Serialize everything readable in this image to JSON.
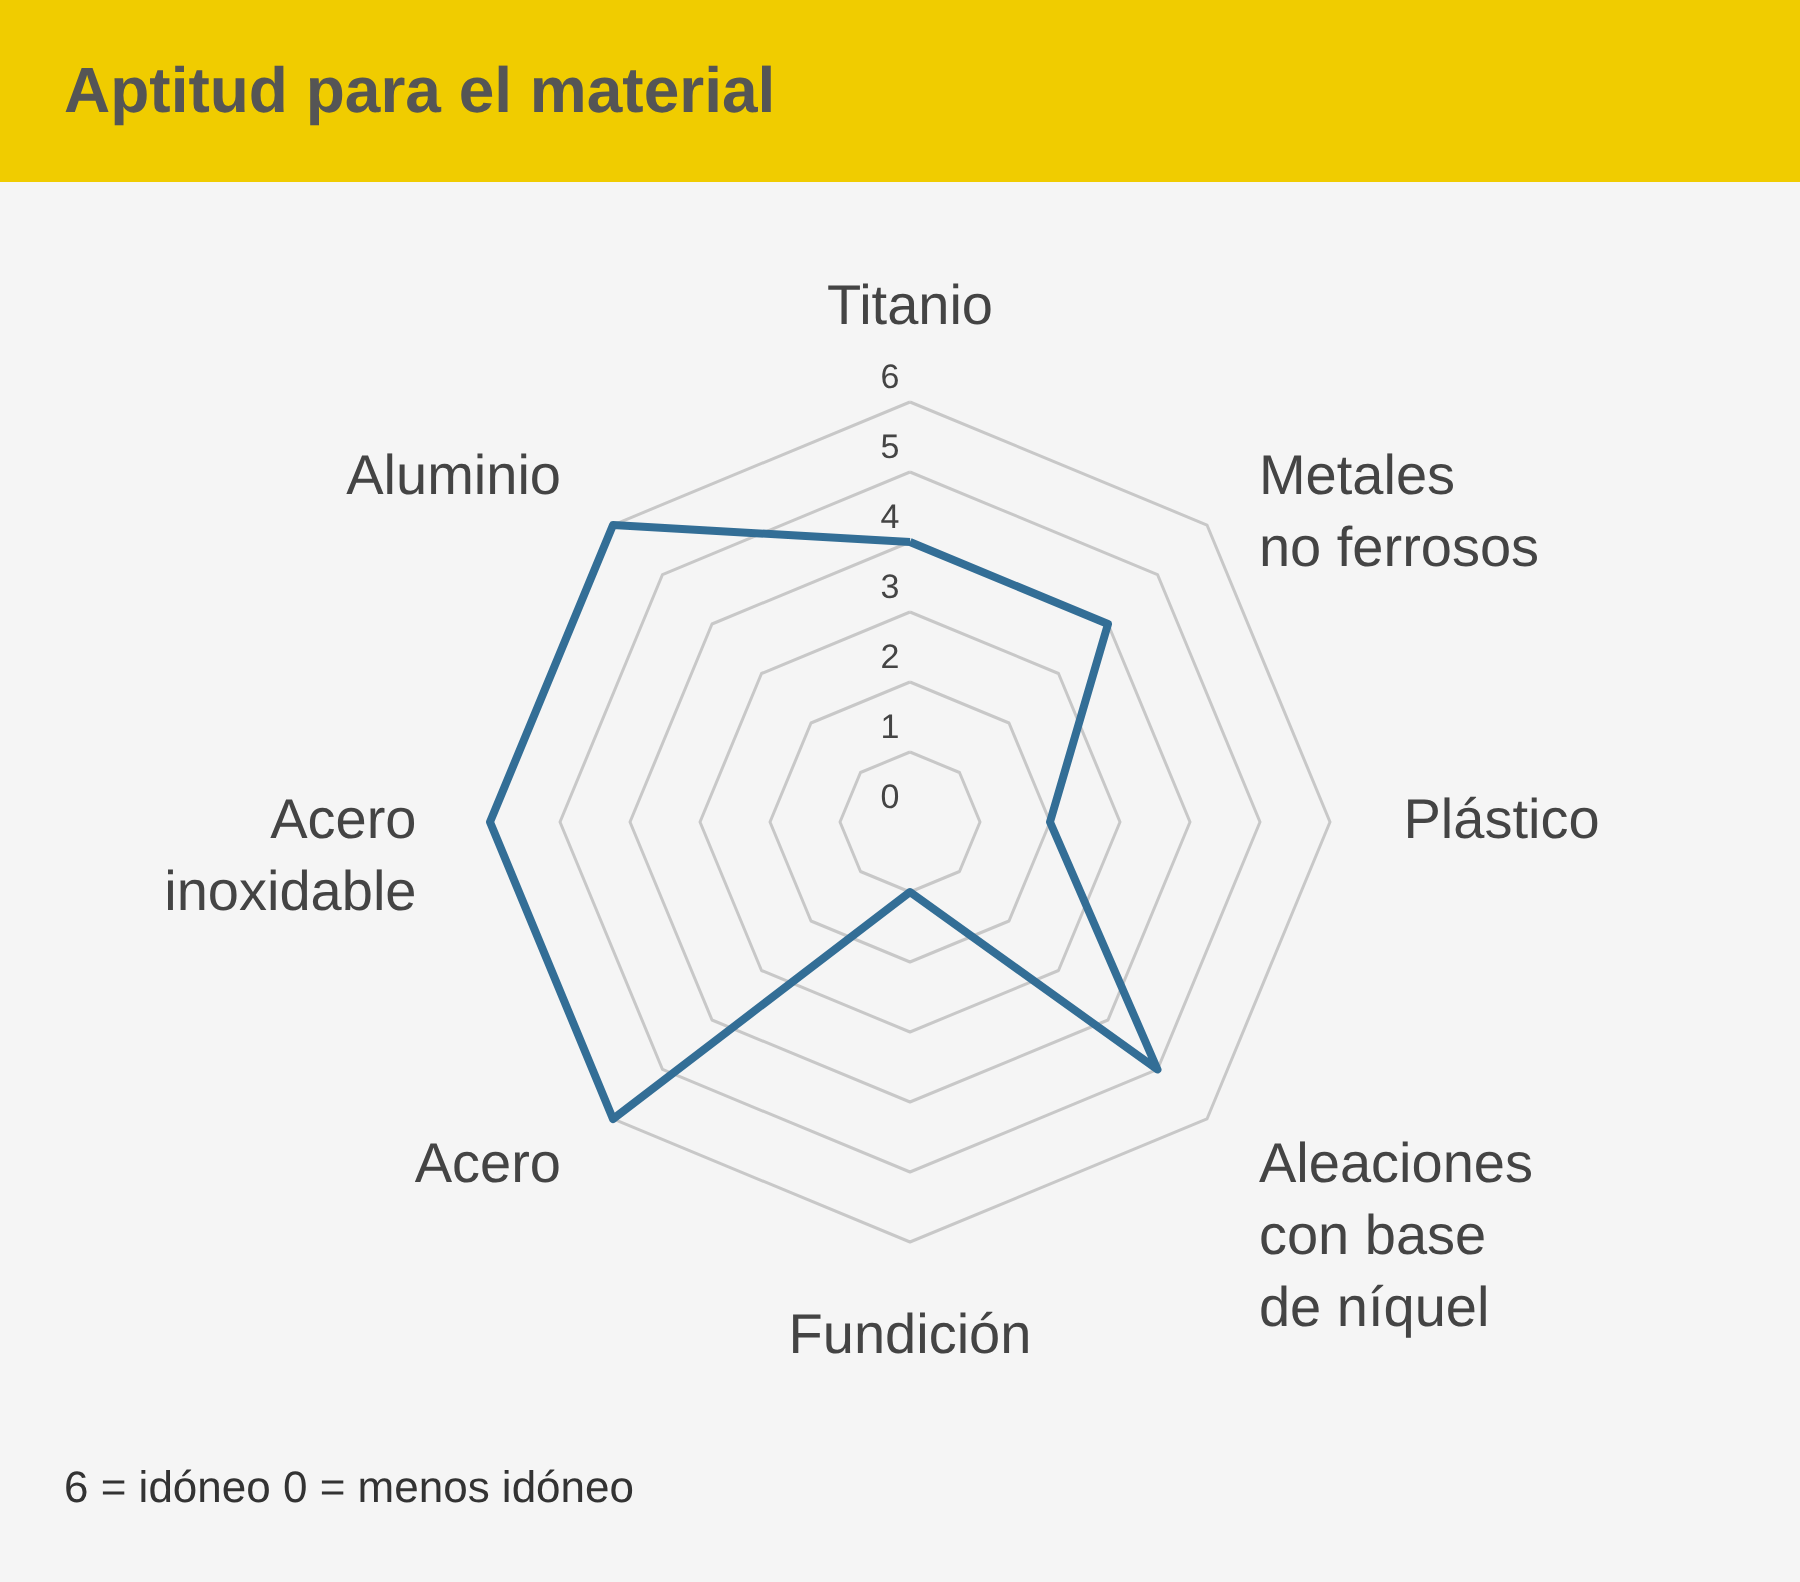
{
  "chart_data": {
    "type": "radar",
    "title": "Aptitud para el material",
    "categories": [
      "Titanio",
      "Metales\nno ferrosos",
      "Plástico",
      "Aleaciones\ncon base\nde níquel",
      "Fundición",
      "Acero",
      "Acero\ninoxidable",
      "Aluminio"
    ],
    "series": [
      {
        "color": "#336e96",
        "values": [
          4,
          4,
          2,
          5,
          1,
          6,
          6,
          6
        ]
      }
    ],
    "ylim": [
      0,
      6
    ],
    "yticks": [
      0,
      1,
      2,
      3,
      4,
      5,
      6
    ],
    "grid": true,
    "annotations": [
      "6 = idóneo   0 = menos idóneo"
    ]
  }
}
